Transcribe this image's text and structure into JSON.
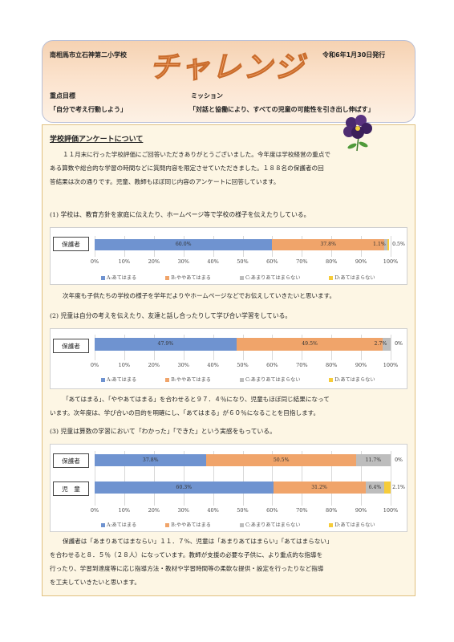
{
  "header": {
    "school": "南相馬市立石神第二小学校",
    "title": "チャレンジ",
    "date": "令和6年1月30日発行",
    "goal_label": "重点目標",
    "goal": "「自分で考え行動しよう」",
    "mission_label": "ミッション",
    "mission": "「対話と協働により、すべての児童の可能性を引き出し伸ばす」"
  },
  "section": {
    "title": "学校評価アンケートについて",
    "intro": [
      "１１月末に行った学校評価にご回答いただきありがとうございました。今年度は学校経営の重点で",
      "ある算数や総合的な学習の時間などに質問内容を限定させていただきました。１８８名の保護者の回",
      "答結果は次の通りです。児童、教師もほぼ同じ内容のアンケートに回答しています。"
    ],
    "q1": "(1) 学校は、教育方針を家庭に伝えたり、ホームページ等で学校の様子を伝えたりしている。",
    "c1": "次年度も子供たちの学校の様子を学年だよりやホームページなどでお伝えしていきたいと思います。",
    "q2": "(2) 児童は自分の考えを伝えたり、友達と話し合ったりして学び合い学習をしている。",
    "c2": [
      "「あてはまる」、「ややあてはまる」を合わせると９７．４％になり、児童もほぼ同じ結果になって",
      "います。次年度は、学び合いの目的を明確にし、「あてはまる」が６０％になることを目指します。"
    ],
    "q3": "(3) 児童は算数の学習において「わかった」「できた」という実感をもっている。",
    "c3": [
      "保護者は「あまりあてはまならい」１１．７%、児童は「あまりあてはまらい」「あてはまらない」",
      "を合わせると８．５％（２８人）になっています。教師が支援の必要な子供に、より重点的な指導を",
      "行ったり、学習到達度等に応じ指導方法・教材や学習時間等の柔軟な提供・設定を行ったりなど指導",
      "を工夫していきたいと思います。"
    ]
  },
  "legend": [
    "A:あてはまる",
    "B:ややあてはまる",
    "C:あまりあてはまらない",
    "D:あてはまらない"
  ],
  "colors": {
    "A": "#6f93d0",
    "B": "#f0a46a",
    "C": "#bdbdbd",
    "D": "#f6cc3a"
  },
  "ticks": [
    "0%",
    "10%",
    "20%",
    "30%",
    "40%",
    "50%",
    "60%",
    "70%",
    "80%",
    "90%",
    "100%"
  ],
  "chart_data": [
    {
      "type": "bar",
      "stacked": true,
      "orientation": "horizontal",
      "categories": [
        "保護者"
      ],
      "series": [
        {
          "name": "A:あてはまる",
          "values": [
            60.0
          ],
          "labels": [
            "60.0%"
          ]
        },
        {
          "name": "B:ややあてはまる",
          "values": [
            37.8
          ],
          "labels": [
            "37.8%"
          ]
        },
        {
          "name": "C:あまりあてはまらない",
          "values": [
            1.1
          ],
          "labels": [
            "1.1%"
          ]
        },
        {
          "name": "D:あてはまらない",
          "values": [
            0.5
          ],
          "labels": [
            "0.5%"
          ]
        }
      ],
      "xlim": [
        0,
        100
      ]
    },
    {
      "type": "bar",
      "stacked": true,
      "orientation": "horizontal",
      "categories": [
        "保護者"
      ],
      "series": [
        {
          "name": "A:あてはまる",
          "values": [
            47.9
          ],
          "labels": [
            "47.9%"
          ]
        },
        {
          "name": "B:ややあてはまる",
          "values": [
            49.5
          ],
          "labels": [
            "49.5%"
          ]
        },
        {
          "name": "C:あまりあてはまらない",
          "values": [
            2.7
          ],
          "labels": [
            "2.7%"
          ]
        },
        {
          "name": "D:あてはまらない",
          "values": [
            0
          ],
          "labels": [
            "0%"
          ]
        }
      ],
      "xlim": [
        0,
        100
      ]
    },
    {
      "type": "bar",
      "stacked": true,
      "orientation": "horizontal",
      "categories": [
        "保護者",
        "児　童"
      ],
      "series": [
        {
          "name": "A:あてはまる",
          "values": [
            37.8,
            60.3
          ],
          "labels": [
            "37.8%",
            "60.3%"
          ]
        },
        {
          "name": "B:ややあてはまる",
          "values": [
            50.5,
            31.2
          ],
          "labels": [
            "50.5%",
            "31.2%"
          ]
        },
        {
          "name": "C:あまりあてはまらない",
          "values": [
            11.7,
            6.4
          ],
          "labels": [
            "11.7%",
            "6.4%"
          ]
        },
        {
          "name": "D:あてはまらない",
          "values": [
            0,
            2.1
          ],
          "labels": [
            "0%",
            "2.1%"
          ]
        }
      ],
      "xlim": [
        0,
        100
      ]
    }
  ]
}
